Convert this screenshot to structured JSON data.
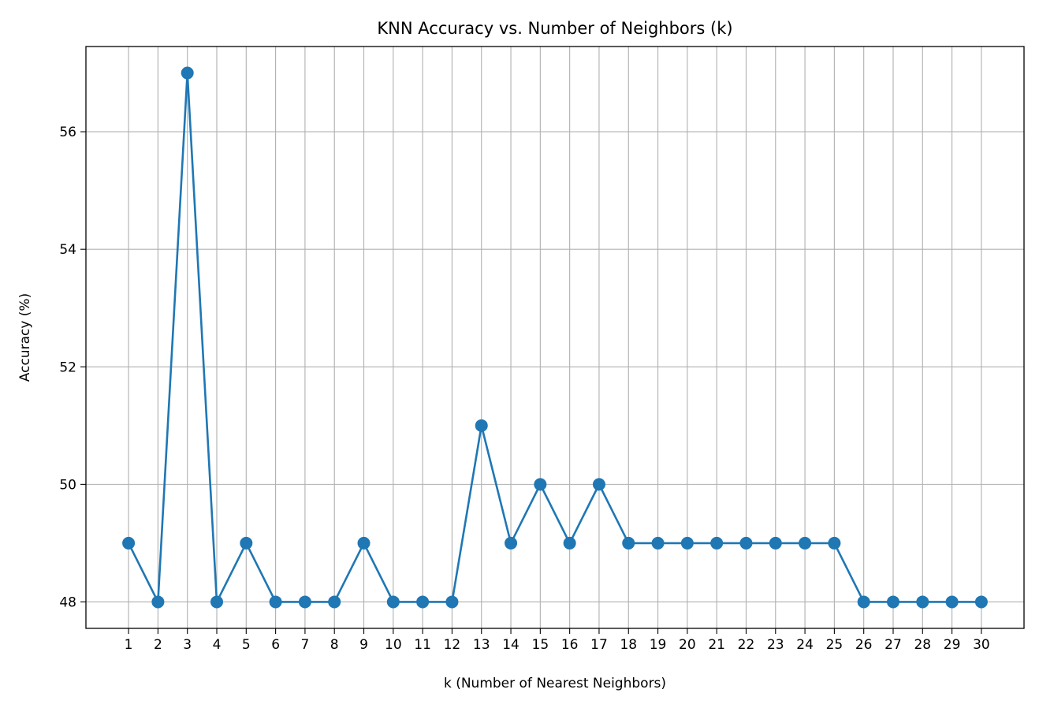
{
  "chart_data": {
    "type": "line",
    "title": "KNN Accuracy vs. Number of Neighbors (k)",
    "xlabel": "k (Number of Nearest Neighbors)",
    "ylabel": "Accuracy (%)",
    "x": [
      1,
      2,
      3,
      4,
      5,
      6,
      7,
      8,
      9,
      10,
      11,
      12,
      13,
      14,
      15,
      16,
      17,
      18,
      19,
      20,
      21,
      22,
      23,
      24,
      25,
      26,
      27,
      28,
      29,
      30
    ],
    "series": [
      {
        "values": [
          49,
          48,
          57,
          48,
          49,
          48,
          48,
          48,
          49,
          48,
          48,
          48,
          51,
          49,
          50,
          49,
          50,
          49,
          49,
          49,
          49,
          49,
          49,
          49,
          49,
          48,
          48,
          48,
          48,
          48
        ],
        "color": "#1f77b4",
        "marker": "circle"
      }
    ],
    "xticks": [
      "1",
      "2",
      "3",
      "4",
      "5",
      "6",
      "7",
      "8",
      "9",
      "10",
      "11",
      "12",
      "13",
      "14",
      "15",
      "16",
      "17",
      "18",
      "19",
      "20",
      "21",
      "22",
      "23",
      "24",
      "25",
      "26",
      "27",
      "28",
      "29",
      "30"
    ],
    "yticks": [
      48,
      50,
      52,
      54,
      56
    ],
    "xlim": [
      -0.45,
      31.45
    ],
    "ylim": [
      47.55,
      57.45
    ],
    "grid": true,
    "grid_color": "#b0b0b0"
  }
}
